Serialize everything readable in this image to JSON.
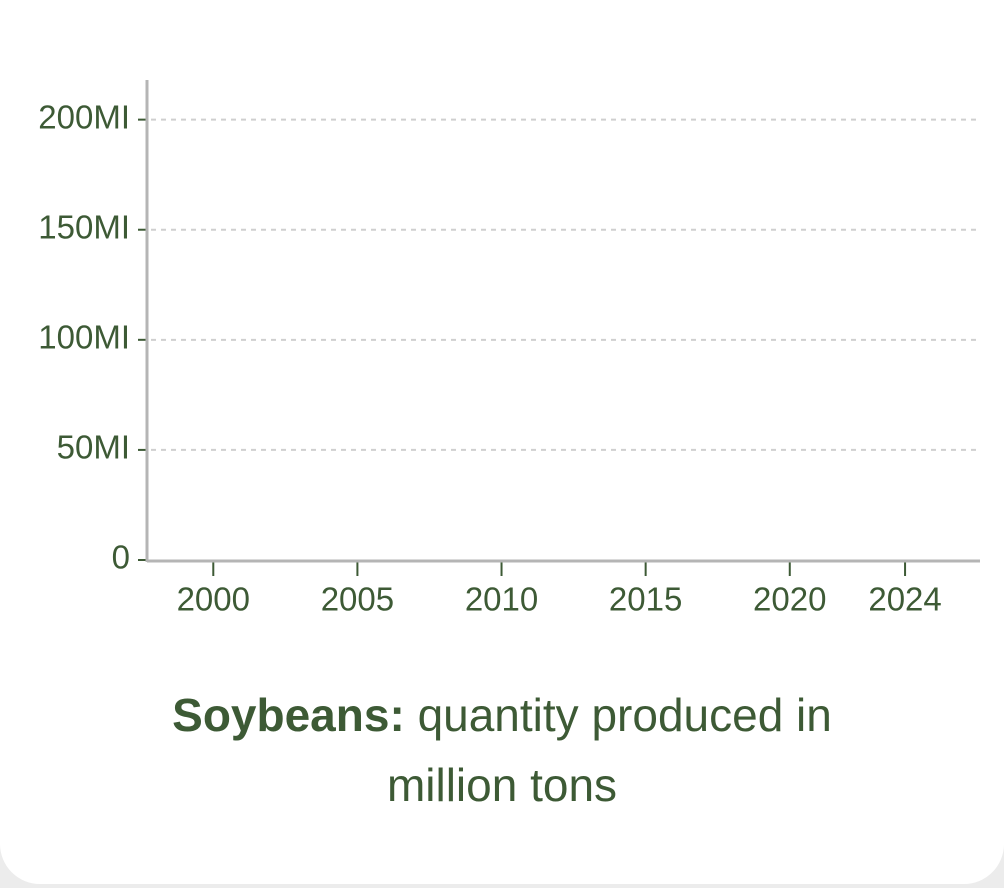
{
  "chart_data": {
    "type": "line",
    "title": "Soybeans:",
    "subtitle": "quantity produced in million tons",
    "xlim": [
      1997.7,
      2026.6
    ],
    "xticks": [
      2000,
      2005,
      2010,
      2015,
      2020,
      2024
    ],
    "ylim": [
      0,
      218
    ],
    "yticks": [
      0,
      {
        "value": 50,
        "label": "50MI"
      },
      {
        "value": 100,
        "label": "100MI"
      },
      {
        "value": 150,
        "label": "150MI"
      },
      {
        "value": 200,
        "label": "200MI"
      }
    ],
    "grid": true,
    "color": "#3d5a35"
  }
}
